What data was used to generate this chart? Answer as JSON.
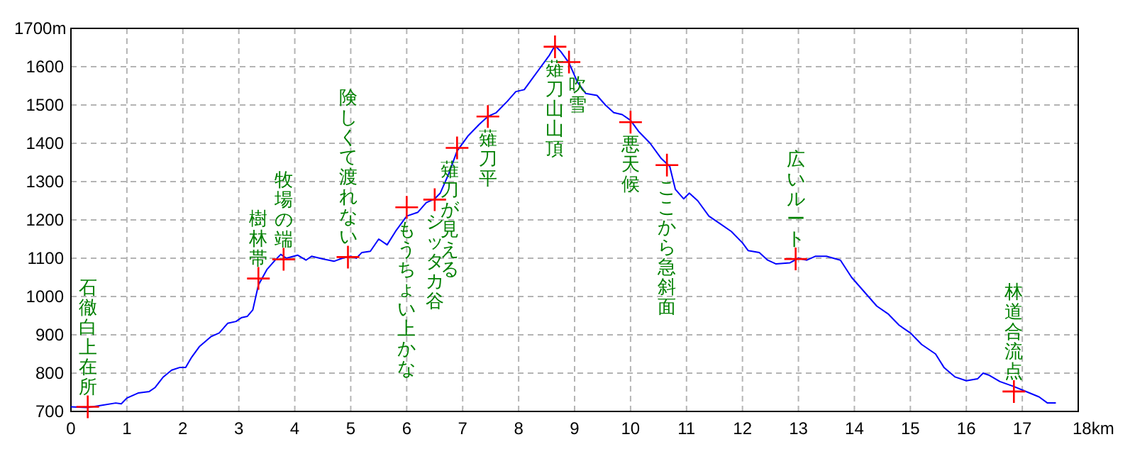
{
  "chart_data": {
    "type": "line",
    "xlim": [
      0,
      18
    ],
    "ylim": [
      700,
      1700
    ],
    "xticks": [
      0,
      1,
      2,
      3,
      4,
      5,
      6,
      7,
      8,
      9,
      10,
      11,
      12,
      13,
      14,
      15,
      16,
      17,
      {
        "value": 18,
        "label": "18km"
      }
    ],
    "yticks": [
      700,
      800,
      900,
      1000,
      1100,
      1200,
      1300,
      1400,
      1500,
      {
        "value": 1600,
        "label": "1600"
      },
      {
        "value": 1700,
        "label": "1700m"
      }
    ],
    "grid": true,
    "line_style": "solid",
    "series": [
      {
        "type": "line",
        "color": "#0000ff",
        "x": [
          0,
          0.3,
          0.5,
          0.8,
          0.9,
          1.0,
          1.2,
          1.4,
          1.5,
          1.65,
          1.8,
          1.95,
          2.05,
          2.15,
          2.3,
          2.5,
          2.65,
          2.8,
          2.95,
          3.05,
          3.15,
          3.25,
          3.35,
          3.5,
          3.65,
          3.75,
          3.85,
          4.05,
          4.2,
          4.3,
          4.5,
          4.7,
          4.85,
          5.0,
          5.1,
          5.2,
          5.35,
          5.5,
          5.65,
          5.8,
          5.9,
          6.0,
          6.2,
          6.35,
          6.5,
          6.6,
          6.75,
          6.9,
          7.1,
          7.3,
          7.45,
          7.6,
          7.8,
          7.95,
          8.1,
          8.25,
          8.4,
          8.55,
          8.65,
          8.75,
          8.9,
          9.05,
          9.2,
          9.4,
          9.55,
          9.7,
          9.85,
          10.0,
          10.15,
          10.35,
          10.55,
          10.7,
          10.8,
          10.95,
          11.05,
          11.2,
          11.4,
          11.6,
          11.8,
          12.0,
          12.1,
          12.3,
          12.45,
          12.6,
          12.85,
          13.0,
          13.15,
          13.3,
          13.5,
          13.75,
          13.95,
          14.1,
          14.25,
          14.4,
          14.6,
          14.8,
          15.0,
          15.2,
          15.45,
          15.6,
          15.8,
          16.0,
          16.2,
          16.3,
          16.4,
          16.6,
          16.85,
          17.1,
          17.3,
          17.45,
          17.6
        ],
        "values": [
          712,
          710,
          715,
          722,
          720,
          735,
          748,
          752,
          762,
          790,
          808,
          815,
          815,
          840,
          870,
          895,
          905,
          930,
          935,
          945,
          948,
          965,
          1030,
          1070,
          1095,
          1110,
          1100,
          1108,
          1095,
          1105,
          1098,
          1092,
          1100,
          1105,
          1100,
          1115,
          1118,
          1150,
          1135,
          1170,
          1190,
          1210,
          1220,
          1245,
          1255,
          1270,
          1320,
          1380,
          1420,
          1450,
          1470,
          1480,
          1510,
          1535,
          1540,
          1570,
          1600,
          1630,
          1655,
          1640,
          1610,
          1560,
          1530,
          1525,
          1500,
          1480,
          1475,
          1460,
          1430,
          1400,
          1360,
          1340,
          1280,
          1255,
          1270,
          1250,
          1210,
          1190,
          1170,
          1140,
          1120,
          1115,
          1095,
          1085,
          1088,
          1100,
          1095,
          1105,
          1105,
          1095,
          1050,
          1025,
          1000,
          975,
          955,
          925,
          905,
          875,
          850,
          815,
          790,
          780,
          785,
          800,
          795,
          778,
          765,
          750,
          738,
          722,
          722
        ]
      },
      {
        "type": "scatter",
        "color": "#ff0000",
        "marker": "cross",
        "x": [
          0.3,
          3.35,
          3.8,
          4.95,
          6.0,
          6.5,
          6.9,
          7.45,
          8.65,
          8.9,
          10.0,
          10.65,
          12.95,
          16.85
        ],
        "values": [
          712,
          1047,
          1097,
          1103,
          1233,
          1253,
          1388,
          1470,
          1652,
          1612,
          1455,
          1343,
          1098,
          752
        ]
      }
    ],
    "annotations": [
      {
        "text": "石徹白上在所",
        "x": 0.3,
        "y": 712
      },
      {
        "text": "樹林帯",
        "x": 3.35,
        "y": 1047
      },
      {
        "text": "牧場の端",
        "x": 3.8,
        "y": 1097
      },
      {
        "text": "険しくて渡れない",
        "x": 4.95,
        "y": 1103
      },
      {
        "text": "もうちょい上かな",
        "x": 6.0,
        "y": 1233
      },
      {
        "text": "シッタカ谷",
        "x": 6.5,
        "y": 1253
      },
      {
        "text": "薙刀が見える",
        "x": 6.9,
        "y": 1388
      },
      {
        "text": "薙刀平",
        "x": 7.45,
        "y": 1470
      },
      {
        "text": "薙刀山山頂",
        "x": 8.65,
        "y": 1652
      },
      {
        "text": "吹雪",
        "x": 8.9,
        "y": 1612
      },
      {
        "text": "悪天候",
        "x": 10.0,
        "y": 1455
      },
      {
        "text": "ここから急斜面",
        "x": 10.65,
        "y": 1343
      },
      {
        "text": "広いルート",
        "x": 12.95,
        "y": 1098
      },
      {
        "text": "林道合流点",
        "x": 16.85,
        "y": 752
      }
    ]
  }
}
